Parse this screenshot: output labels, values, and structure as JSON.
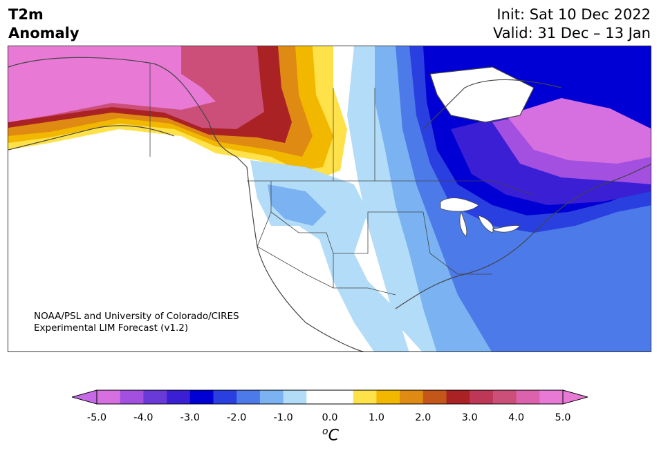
{
  "title": {
    "line1": "T2m",
    "line2": "Anomaly"
  },
  "dates": {
    "init": "Init: Sat 10 Dec 2022",
    "valid": "Valid: 31 Dec – 13 Jan"
  },
  "credit": {
    "line1": "NOAA/PSL and University of Colorado/CIRES",
    "line2": "Experimental LIM Forecast (v1.2)"
  },
  "colorbar": {
    "ticks": [
      "-5.0",
      "-4.0",
      "-3.0",
      "-2.0",
      "-1.0",
      "0.0",
      "1.0",
      "2.0",
      "3.0",
      "4.0",
      "5.0"
    ],
    "unit_sup": "o",
    "unit_main": "C",
    "colors": [
      "#d66fe0",
      "#a34fe0",
      "#6a3ad9",
      "#3a1fd4",
      "#0000d4",
      "#2a3fe0",
      "#4c7ae8",
      "#7ab2f2",
      "#b2dcf7",
      "#ffffff",
      "#ffffff",
      "#ffe24a",
      "#f2b800",
      "#df8a12",
      "#c4561a",
      "#ab2225",
      "#be3757",
      "#cc4f7a",
      "#dc62ad",
      "#e87ad6"
    ],
    "under_color": "#c66ae8",
    "over_color": "#e87ad6"
  },
  "map": {
    "region": "North America",
    "colors": {
      "pink": "#e87ad6",
      "magenta": "#cc4f7a",
      "red": "#ab2225",
      "orange": "#df8a12",
      "gold": "#f2b800",
      "yellow": "#ffe24a",
      "lightblue": "#b2dcf7",
      "skyblue": "#7ab2f2",
      "blue": "#4c7ae8",
      "royal": "#2a3fe0",
      "navy": "#0000d4",
      "indigo": "#3a1fd4",
      "purple": "#6a3ad9",
      "violet": "#a34fe0",
      "orchid": "#d66fe0"
    }
  }
}
